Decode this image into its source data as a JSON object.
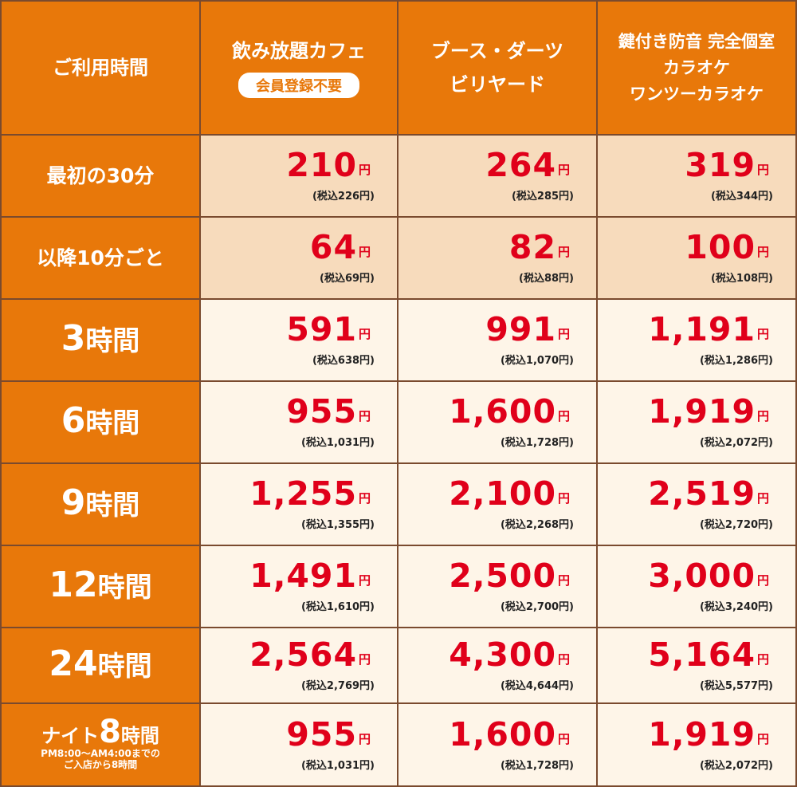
{
  "header": {
    "time_label": "ご利用時間",
    "col1_title": "飲み放題カフェ",
    "col1_badge": "会員登録不要",
    "col2_line1": "ブース・ダーツ",
    "col2_line2": "ビリヤード",
    "col3_line1": "鍵付き防音 完全個室",
    "col3_line2": "カラオケ",
    "col3_line3": "ワンツーカラオケ"
  },
  "yen": "円",
  "rows": [
    {
      "label": "最初の30分",
      "label_num": "",
      "label_suffix": "",
      "prices": [
        {
          "price": "210",
          "tax": "(税込226円)"
        },
        {
          "price": "264",
          "tax": "(税込285円)"
        },
        {
          "price": "319",
          "tax": "(税込344円)"
        }
      ]
    },
    {
      "label": "以降10分ごと",
      "label_num": "",
      "label_suffix": "",
      "prices": [
        {
          "price": "64",
          "tax": "(税込69円)"
        },
        {
          "price": "82",
          "tax": "(税込88円)"
        },
        {
          "price": "100",
          "tax": "(税込108円)"
        }
      ]
    },
    {
      "label": "",
      "label_num": "3",
      "label_suffix": "時間",
      "prices": [
        {
          "price": "591",
          "tax": "(税込638円)"
        },
        {
          "price": "991",
          "tax": "(税込1,070円)"
        },
        {
          "price": "1,191",
          "tax": "(税込1,286円)"
        }
      ]
    },
    {
      "label": "",
      "label_num": "6",
      "label_suffix": "時間",
      "prices": [
        {
          "price": "955",
          "tax": "(税込1,031円)"
        },
        {
          "price": "1,600",
          "tax": "(税込1,728円)"
        },
        {
          "price": "1,919",
          "tax": "(税込2,072円)"
        }
      ]
    },
    {
      "label": "",
      "label_num": "9",
      "label_suffix": "時間",
      "prices": [
        {
          "price": "1,255",
          "tax": "(税込1,355円)"
        },
        {
          "price": "2,100",
          "tax": "(税込2,268円)"
        },
        {
          "price": "2,519",
          "tax": "(税込2,720円)"
        }
      ]
    },
    {
      "label": "",
      "label_num": "12",
      "label_suffix": "時間",
      "prices": [
        {
          "price": "1,491",
          "tax": "(税込1,610円)"
        },
        {
          "price": "2,500",
          "tax": "(税込2,700円)"
        },
        {
          "price": "3,000",
          "tax": "(税込3,240円)"
        }
      ]
    },
    {
      "label": "",
      "label_num": "24",
      "label_suffix": "時間",
      "prices": [
        {
          "price": "2,564",
          "tax": "(税込2,769円)"
        },
        {
          "price": "4,300",
          "tax": "(税込4,644円)"
        },
        {
          "price": "5,164",
          "tax": "(税込5,577円)"
        }
      ]
    },
    {
      "label": "ナイト",
      "label_num": "8",
      "label_suffix": "時間",
      "sub1": "PM8:00〜AM4:00までの",
      "sub2": "ご入店から8時間",
      "prices": [
        {
          "price": "955",
          "tax": "(税込1,031円)"
        },
        {
          "price": "1,600",
          "tax": "(税込1,728円)"
        },
        {
          "price": "1,919",
          "tax": "(税込2,072円)"
        }
      ]
    }
  ]
}
